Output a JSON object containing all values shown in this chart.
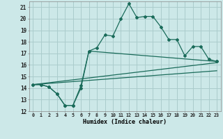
{
  "xlabel": "Humidex (Indice chaleur)",
  "background_color": "#cce8e8",
  "grid_color": "#aacccc",
  "line_color": "#1a6b5a",
  "xlim": [
    -0.5,
    23.5
  ],
  "ylim": [
    12,
    21.5
  ],
  "yticks": [
    12,
    13,
    14,
    15,
    16,
    17,
    18,
    19,
    20,
    21
  ],
  "xticks": [
    0,
    1,
    2,
    3,
    4,
    5,
    6,
    7,
    8,
    9,
    10,
    11,
    12,
    13,
    14,
    15,
    16,
    17,
    18,
    19,
    20,
    21,
    22,
    23
  ],
  "line1_x": [
    0,
    1,
    2,
    3,
    4,
    5,
    6,
    7,
    8,
    9,
    10,
    11,
    12,
    13,
    14,
    15,
    16,
    17,
    18,
    19,
    20,
    21,
    22,
    23
  ],
  "line1_y": [
    14.3,
    14.3,
    14.1,
    13.5,
    12.5,
    12.5,
    14.0,
    17.2,
    17.5,
    18.6,
    18.5,
    20.0,
    21.3,
    20.1,
    20.2,
    20.2,
    19.3,
    18.2,
    18.2,
    16.8,
    17.6,
    17.6,
    16.5,
    16.3
  ],
  "line2_x": [
    0,
    1,
    2,
    3,
    4,
    5,
    6,
    7,
    23
  ],
  "line2_y": [
    14.3,
    14.3,
    14.1,
    13.5,
    12.5,
    12.5,
    14.2,
    17.2,
    16.3
  ],
  "line3_x": [
    0,
    23
  ],
  "line3_y": [
    14.3,
    16.2
  ],
  "line4_x": [
    0,
    23
  ],
  "line4_y": [
    14.3,
    15.5
  ]
}
